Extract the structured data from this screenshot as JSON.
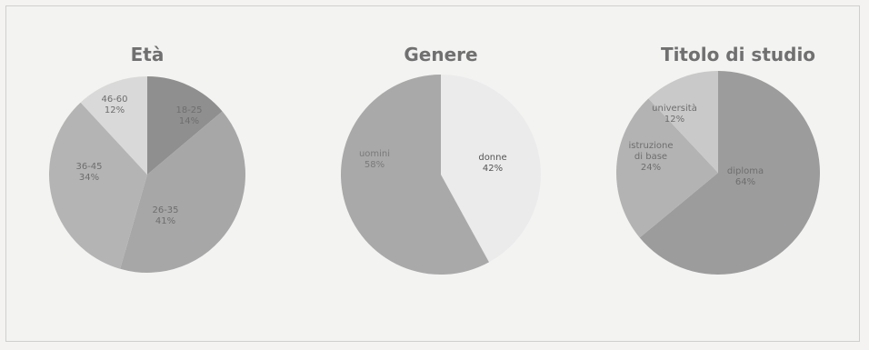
{
  "chart_data": [
    {
      "type": "pie",
      "title": "Età",
      "slices": [
        {
          "label": "18-25",
          "value": 14,
          "display": "14%",
          "color": "#8f8f8f"
        },
        {
          "label": "26-35",
          "value": 41,
          "display": "41%",
          "color": "#a7a7a7"
        },
        {
          "label": "36-45",
          "value": 34,
          "display": "34%",
          "color": "#b4b4b4"
        },
        {
          "label": "46-60",
          "value": 12,
          "display": "12%",
          "color": "#d9d9d9"
        }
      ]
    },
    {
      "type": "pie",
      "title": "Genere",
      "slices": [
        {
          "label": "donne",
          "value": 42,
          "display": "42%",
          "color": "#ebebeb"
        },
        {
          "label": "uomini",
          "value": 58,
          "display": "58%",
          "color": "#a9a9a9"
        }
      ]
    },
    {
      "type": "pie",
      "title": "Titolo di studio",
      "slices": [
        {
          "label": "diploma",
          "value": 64,
          "display": "64%",
          "color": "#9c9c9c"
        },
        {
          "label": "istruzione di base",
          "value": 24,
          "display": "24%",
          "color": "#b3b3b3"
        },
        {
          "label": "università",
          "value": 12,
          "display": "12%",
          "color": "#c9c9c9"
        }
      ]
    }
  ]
}
